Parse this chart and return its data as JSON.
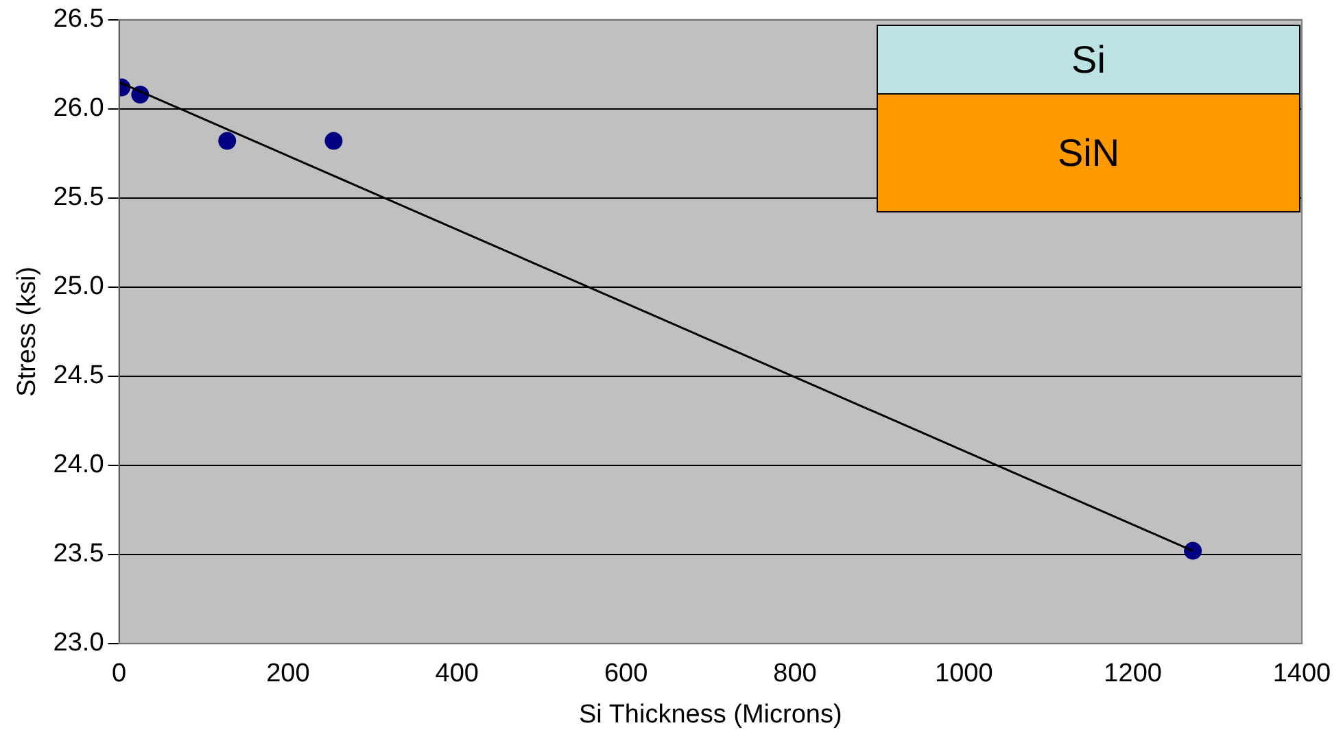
{
  "chart_data": {
    "type": "scatter",
    "xlabel": "Si Thickness (Microns)",
    "ylabel": "Stress (ksi)",
    "series": [
      {
        "type": "scatter",
        "color": "#000080",
        "marker": "circle",
        "x": [
          3,
          25,
          128,
          254,
          1271
        ],
        "values": [
          26.12,
          26.08,
          25.82,
          25.82,
          23.52
        ]
      },
      {
        "type": "line",
        "color": "#000000",
        "marker": "none",
        "x": [
          0,
          1271
        ],
        "values": [
          26.15,
          23.52
        ]
      }
    ],
    "xlim": [
      0,
      1400
    ],
    "xticks": [
      0,
      200,
      400,
      600,
      800,
      1000,
      1200,
      1400
    ],
    "ylim": [
      23.0,
      26.5
    ],
    "yticks": [
      {
        "value": 23.0,
        "label": "23.0"
      },
      {
        "value": 23.5,
        "label": "23.5"
      },
      {
        "value": 24.0,
        "label": "24.0"
      },
      {
        "value": 24.5,
        "label": "24.5"
      },
      {
        "value": 25.0,
        "label": "25.0"
      },
      {
        "value": 25.5,
        "label": "25.5"
      },
      {
        "value": 26.0,
        "label": "26.0"
      },
      {
        "value": 26.5,
        "label": "26.5"
      }
    ],
    "grid": "y",
    "legend": false,
    "annotations": [
      "Si",
      "SiN"
    ]
  }
}
